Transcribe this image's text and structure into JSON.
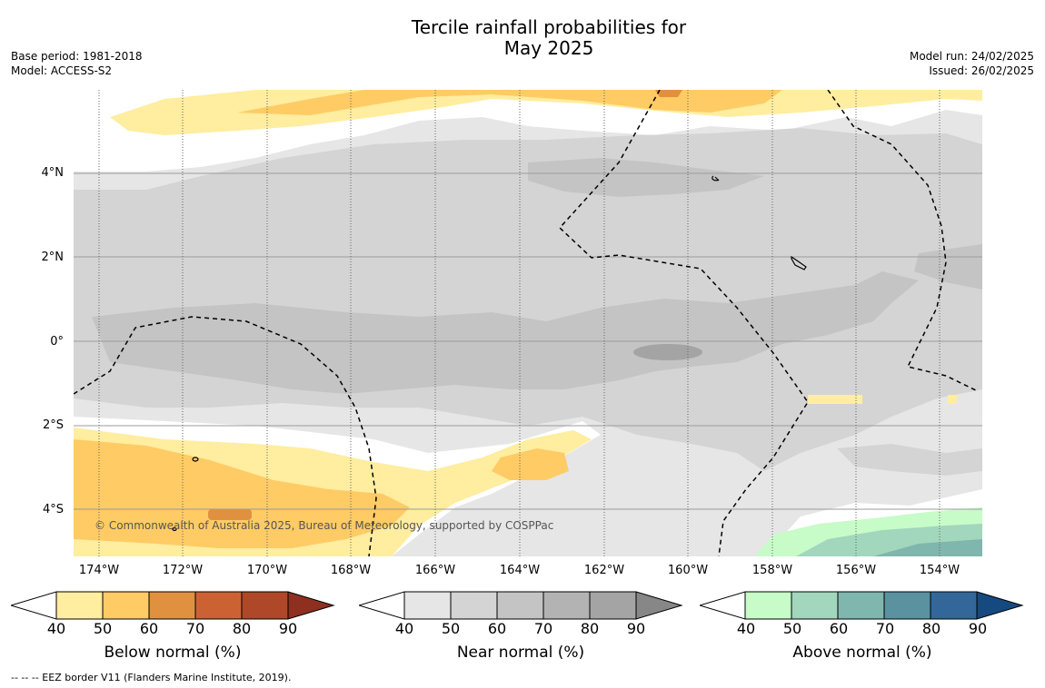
{
  "title_line1": "Tercile rainfall probabilities for",
  "title_line2": "May 2025",
  "meta_left": [
    "Base period: 1981-2018",
    "Model: ACCESS-S2"
  ],
  "meta_right": [
    "Model run: 24/02/2025",
    "Issued: 26/02/2025"
  ],
  "copyright": "© Commonwealth of Australia 2025, Bureau of Meteorology, supported by COSPPac",
  "lat_labels": [
    "4°N",
    "2°N",
    "0°",
    "2°S",
    "4°S"
  ],
  "lon_labels": [
    "174°W",
    "172°W",
    "170°W",
    "168°W",
    "166°W",
    "164°W",
    "162°W",
    "160°W",
    "158°W",
    "156°W",
    "154°W"
  ],
  "legends": [
    {
      "title": "Below normal (%)",
      "colors": [
        "#ffeda0",
        "#fecb65",
        "#e0913f",
        "#cc6234",
        "#af4828",
        "#8e2f1f"
      ]
    },
    {
      "title": "Near normal (%)",
      "colors": [
        "#e6e6e6",
        "#d4d4d4",
        "#c4c4c4",
        "#b3b3b3",
        "#a4a4a4",
        "#878787"
      ]
    },
    {
      "title": "Above normal (%)",
      "colors": [
        "#c7fcc8",
        "#a2d6bd",
        "#7fb6ad",
        "#5a92a0",
        "#336799",
        "#154a80"
      ]
    }
  ],
  "ticks": [
    "40",
    "50",
    "60",
    "70",
    "80",
    "90"
  ],
  "footnote": "--  --  -- EEZ border V11 (Flanders Marine Institute, 2019)."
}
